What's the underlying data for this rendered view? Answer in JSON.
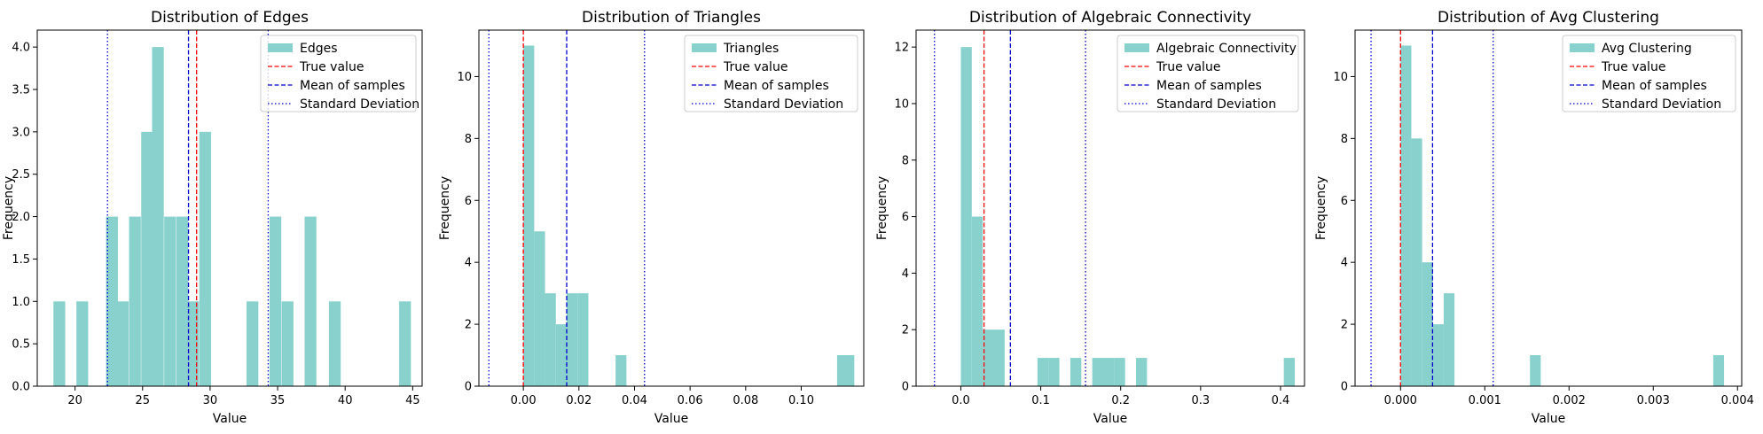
{
  "colors": {
    "bar": "#88d1cd",
    "true_value": "#ff0000",
    "mean": "#0000cc",
    "std": "#0000cc"
  },
  "chart_data": [
    {
      "type": "bar",
      "title": "Distribution of Edges",
      "xlabel": "Value",
      "ylabel": "Frequency",
      "xlim": [
        17.2,
        45.7
      ],
      "ylim": [
        0,
        4.2
      ],
      "xticks": [
        20,
        25,
        30,
        35,
        40,
        45
      ],
      "xtick_labels": [
        "20",
        "25",
        "30",
        "35",
        "40",
        "45"
      ],
      "yticks": [
        0.0,
        0.5,
        1.0,
        1.5,
        2.0,
        2.5,
        3.0,
        3.5,
        4.0
      ],
      "ytick_labels": [
        "0.0",
        "0.5",
        "1.0",
        "1.5",
        "2.0",
        "2.5",
        "3.0",
        "3.5",
        "4.0"
      ],
      "bin_width": 0.87,
      "bars": [
        [
          18.4,
          1
        ],
        [
          20.1,
          1
        ],
        [
          22.3,
          2
        ],
        [
          23.1,
          1
        ],
        [
          24.0,
          2
        ],
        [
          24.9,
          3
        ],
        [
          25.7,
          4
        ],
        [
          26.6,
          2
        ],
        [
          27.5,
          2
        ],
        [
          28.3,
          1
        ],
        [
          29.2,
          3
        ],
        [
          32.7,
          1
        ],
        [
          34.4,
          2
        ],
        [
          35.3,
          1
        ],
        [
          37.0,
          2
        ],
        [
          38.8,
          1
        ],
        [
          44.0,
          1
        ]
      ],
      "lines": {
        "true_value": 29.0,
        "mean": 28.4,
        "std_low": 22.4,
        "std_high": 34.3
      },
      "legend": [
        "Edges",
        "True value",
        "Mean of samples",
        "Standard Deviation"
      ],
      "legend_position": "top-right"
    },
    {
      "type": "bar",
      "title": "Distribution of Triangles",
      "xlabel": "Value",
      "ylabel": "Frequency",
      "xlim": [
        -0.016,
        0.1225
      ],
      "ylim": [
        0,
        11.5
      ],
      "xticks": [
        0.0,
        0.02,
        0.04,
        0.06,
        0.08,
        0.1
      ],
      "xtick_labels": [
        "0.00",
        "0.02",
        "0.04",
        "0.06",
        "0.08",
        "0.10"
      ],
      "yticks": [
        0,
        2,
        4,
        6,
        8,
        10
      ],
      "ytick_labels": [
        "0",
        "2",
        "4",
        "6",
        "8",
        "10"
      ],
      "bin_width": 0.0039,
      "bars": [
        [
          0.0,
          11
        ],
        [
          0.0039,
          5
        ],
        [
          0.0078,
          3
        ],
        [
          0.0117,
          2
        ],
        [
          0.0156,
          3
        ],
        [
          0.0195,
          3
        ],
        [
          0.0332,
          1
        ],
        [
          0.1129,
          1
        ],
        [
          0.1152,
          1
        ]
      ],
      "lines": {
        "true_value": 0.0,
        "mean": 0.0156,
        "std_low": -0.0124,
        "std_high": 0.0436
      },
      "legend": [
        "Triangles",
        "True value",
        "Mean of samples",
        "Standard Deviation"
      ],
      "legend_position": "top-right"
    },
    {
      "type": "bar",
      "title": "Distribution of Algebraic Connectivity",
      "xlabel": "Value",
      "ylabel": "Frequency",
      "xlim": [
        -0.056,
        0.43
      ],
      "ylim": [
        0,
        12.6
      ],
      "xticks": [
        0.0,
        0.1,
        0.2,
        0.3,
        0.4
      ],
      "xtick_labels": [
        "0.0",
        "0.1",
        "0.2",
        "0.3",
        "0.4"
      ],
      "yticks": [
        0,
        2,
        4,
        6,
        8,
        10,
        12
      ],
      "ytick_labels": [
        "0",
        "2",
        "4",
        "6",
        "8",
        "10",
        "12"
      ],
      "bin_width": 0.0137,
      "bars": [
        [
          0.0,
          12
        ],
        [
          0.0137,
          6
        ],
        [
          0.0274,
          2
        ],
        [
          0.0411,
          2
        ],
        [
          0.0959,
          1
        ],
        [
          0.1096,
          1
        ],
        [
          0.137,
          1
        ],
        [
          0.1644,
          1
        ],
        [
          0.1781,
          1
        ],
        [
          0.1918,
          1
        ],
        [
          0.2192,
          1
        ],
        [
          0.4041,
          1
        ]
      ],
      "lines": {
        "true_value": 0.029,
        "mean": 0.062,
        "std_low": -0.033,
        "std_high": 0.156
      },
      "legend": [
        "Algebraic Connectivity",
        "True value",
        "Mean of samples",
        "Standard Deviation"
      ],
      "legend_position": "top-right"
    },
    {
      "type": "bar",
      "title": "Distribution of Avg Clustering",
      "xlabel": "Value",
      "ylabel": "Frequency",
      "xlim": [
        -0.00054,
        0.00405
      ],
      "ylim": [
        0,
        11.5
      ],
      "xticks": [
        0.0,
        0.001,
        0.002,
        0.003,
        0.004
      ],
      "xtick_labels": [
        "0.000",
        "0.001",
        "0.002",
        "0.003",
        "0.004"
      ],
      "yticks": [
        0,
        2,
        4,
        6,
        8,
        10
      ],
      "ytick_labels": [
        "0",
        "2",
        "4",
        "6",
        "8",
        "10"
      ],
      "bin_width": 0.000128,
      "bars": [
        [
          0.0,
          11
        ],
        [
          0.000128,
          8
        ],
        [
          0.000256,
          4
        ],
        [
          0.000384,
          2
        ],
        [
          0.000512,
          3
        ],
        [
          0.001536,
          1
        ],
        [
          0.003712,
          1
        ]
      ],
      "lines": {
        "true_value": 0.0,
        "mean": 0.00038,
        "std_low": -0.00035,
        "std_high": 0.0011
      },
      "legend": [
        "Avg Clustering",
        "True value",
        "Mean of samples",
        "Standard Deviation"
      ],
      "legend_position": "top-right"
    }
  ]
}
